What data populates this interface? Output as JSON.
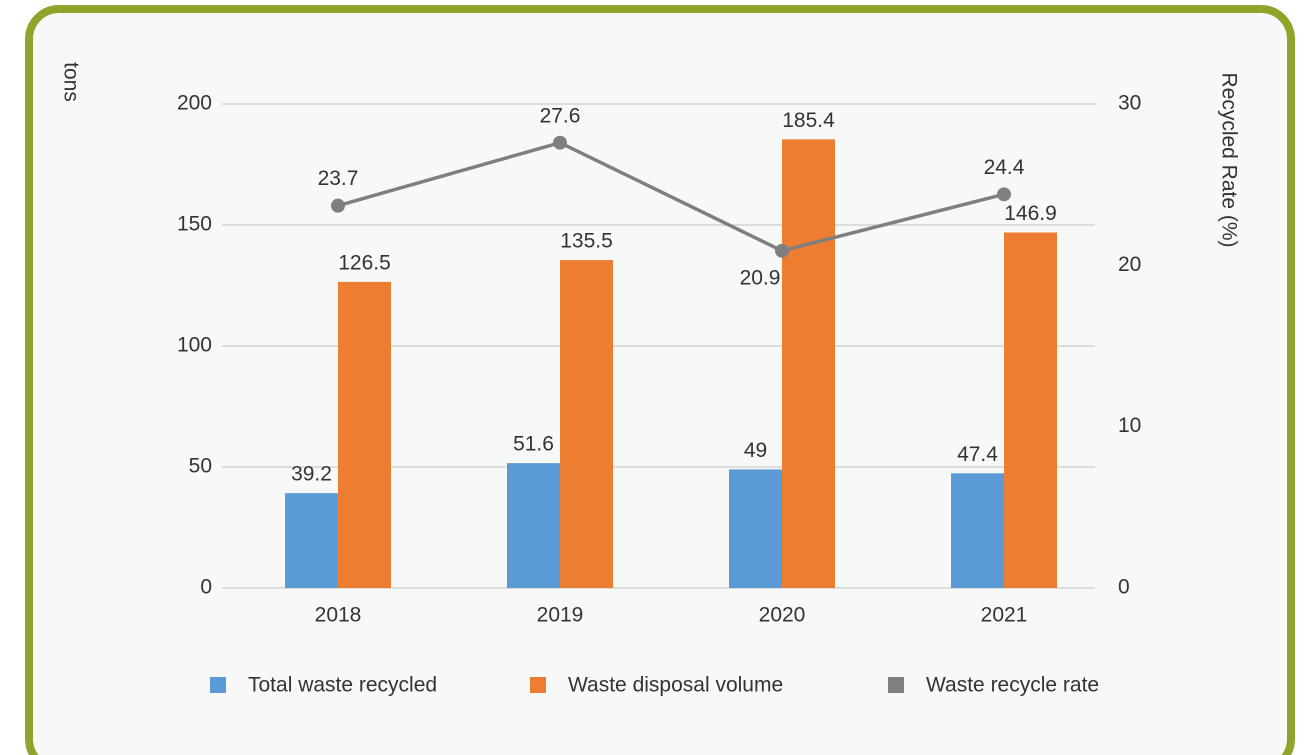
{
  "chart_data": {
    "type": "bar",
    "categories": [
      "2018",
      "2019",
      "2020",
      "2021"
    ],
    "y_label": "tons",
    "y2_label": "Recycled Rate (%)",
    "ylim": [
      0,
      200
    ],
    "yticks": [
      0,
      50,
      100,
      150,
      200
    ],
    "y2lim": [
      0,
      30
    ],
    "y2ticks": [
      0,
      10,
      20,
      30
    ],
    "grid": true,
    "legend": "bottom",
    "series": [
      {
        "name": "Total waste recycled",
        "type": "bar",
        "color": "#5b9bd5",
        "values": [
          39.2,
          51.6,
          49,
          47.4
        ]
      },
      {
        "name": "Waste disposal volume",
        "type": "bar",
        "color": "#ed7d31",
        "values": [
          126.5,
          135.5,
          185.4,
          146.9
        ]
      },
      {
        "name": "Waste recycle rate",
        "type": "line",
        "axis": "y2",
        "color": "#7f7f7f",
        "values": [
          23.7,
          27.6,
          20.9,
          24.4
        ]
      }
    ]
  }
}
